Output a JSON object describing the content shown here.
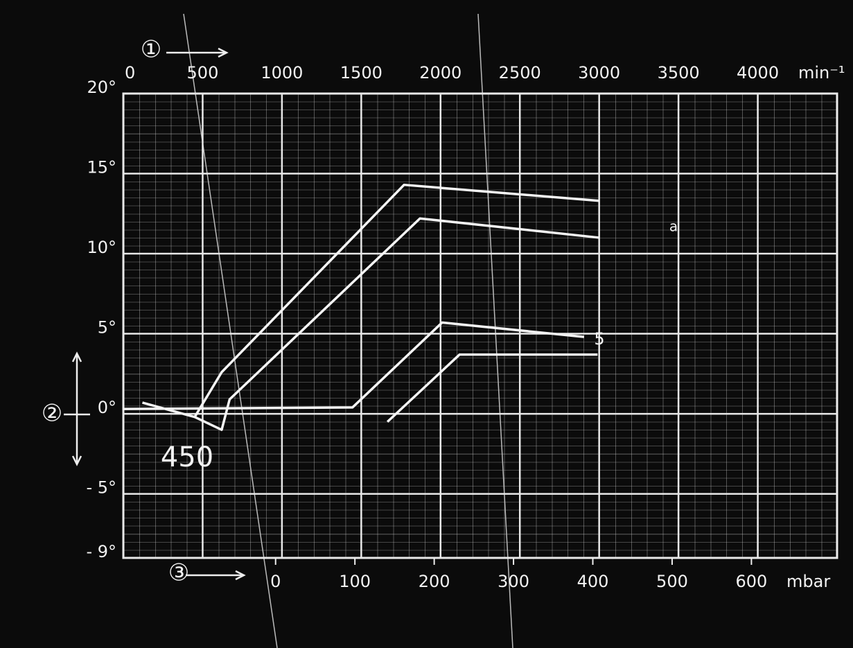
{
  "chart_data": {
    "type": "line",
    "x_unit": "min⁻¹",
    "x2_unit": "mbar",
    "xlim": [
      0,
      4500
    ],
    "xticks": [
      0,
      500,
      1000,
      1500,
      2000,
      2500,
      3000,
      3500,
      4000
    ],
    "x2lim": [
      -192,
      708
    ],
    "x2ticks": [
      0,
      100,
      200,
      300,
      400,
      500,
      600
    ],
    "ylim": [
      -9,
      20
    ],
    "yticks": [
      {
        "value": 20,
        "label": "20°"
      },
      {
        "value": 15,
        "label": "15°"
      },
      {
        "value": 10,
        "label": "10°"
      },
      {
        "value": 5,
        "label": "5°"
      },
      {
        "value": 0,
        "label": "0°"
      },
      {
        "value": -5,
        "label": "- 5°"
      },
      {
        "value": -9,
        "label": "- 9°"
      }
    ],
    "grid": true,
    "series": [
      {
        "color": "#f4f4f4",
        "x": [
          120,
          450,
          620,
          1770,
          3000
        ],
        "values": [
          0.7,
          -0.2,
          2.6,
          14.3,
          13.3
        ]
      },
      {
        "color": "#f4f4f4",
        "x": [
          450,
          620,
          670,
          1870,
          3000
        ],
        "values": [
          -0.2,
          -1.0,
          0.9,
          12.2,
          11.0
        ]
      },
      {
        "color": "#f4f4f4",
        "axis": "x2",
        "x": [
          -192,
          97,
          210,
          389
        ],
        "values": [
          0.3,
          0.4,
          5.7,
          4.8
        ]
      },
      {
        "color": "#f4f4f4",
        "axis": "x2",
        "x": [
          141,
          232,
          406
        ],
        "values": [
          -0.5,
          3.7,
          3.7
        ]
      }
    ],
    "annotations": [
      "①",
      "②",
      "③",
      "450",
      "5",
      "a"
    ]
  }
}
